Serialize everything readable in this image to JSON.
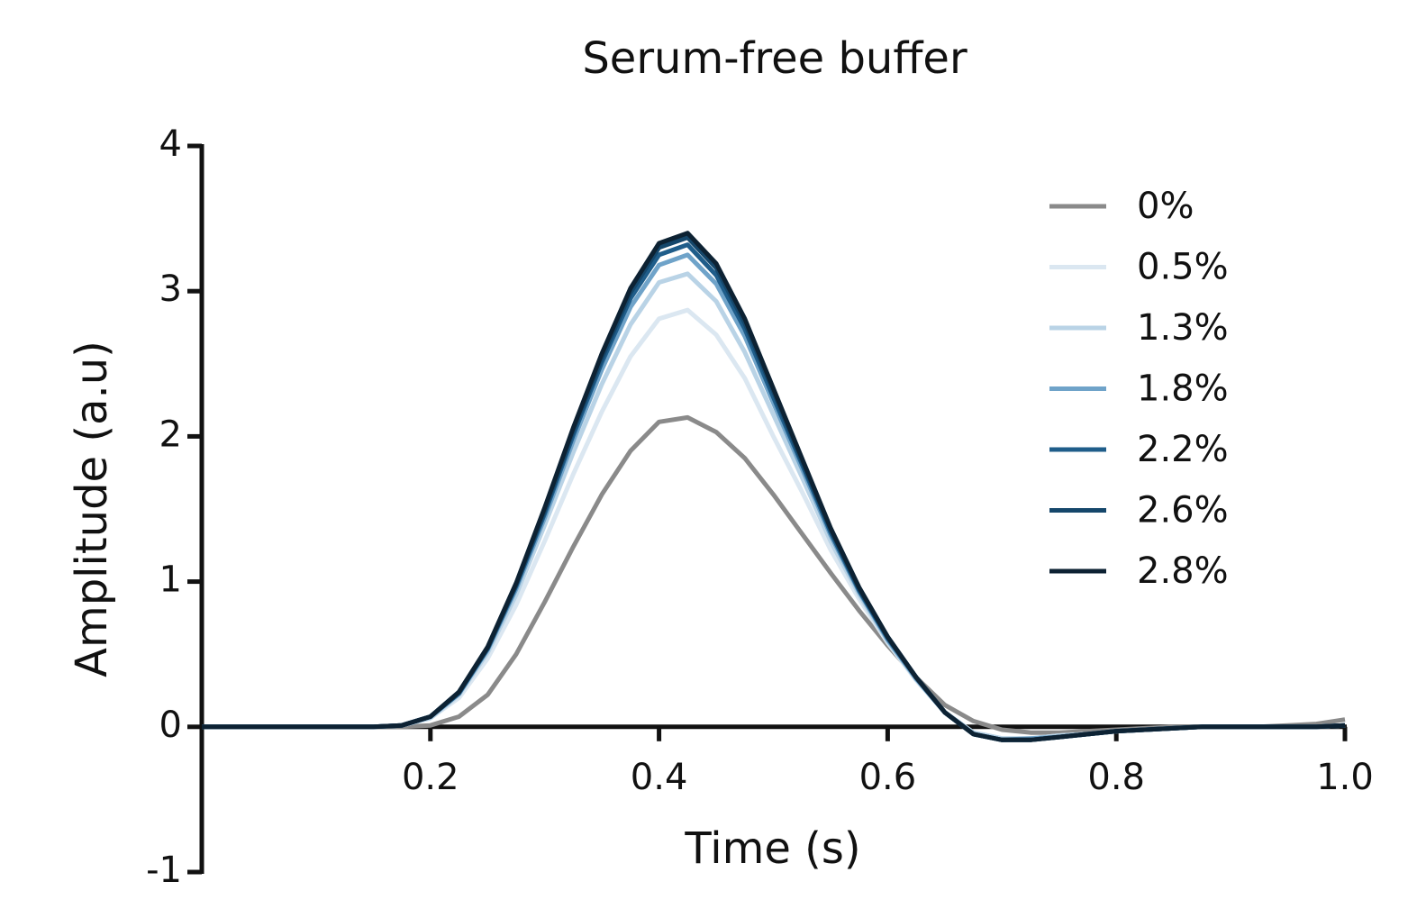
{
  "chart_data": {
    "type": "line",
    "title": "Serum-free buffer",
    "x_label": "Time (s)",
    "y_label": "Amplitude (a.u)",
    "x": [
      0,
      0.025,
      0.05,
      0.075,
      0.1,
      0.125,
      0.15,
      0.175,
      0.2,
      0.225,
      0.25,
      0.275,
      0.3,
      0.325,
      0.35,
      0.375,
      0.4,
      0.425,
      0.45,
      0.475,
      0.5,
      0.525,
      0.55,
      0.575,
      0.6,
      0.625,
      0.65,
      0.675,
      0.7,
      0.725,
      0.75,
      0.775,
      0.8,
      0.825,
      0.85,
      0.875,
      0.9,
      0.925,
      0.95,
      0.975,
      1
    ],
    "series": [
      {
        "name": "0%",
        "color": "#8a8a8a",
        "values": [
          0,
          0,
          0,
          0,
          0,
          0,
          0,
          0,
          0.01,
          0.07,
          0.22,
          0.5,
          0.86,
          1.24,
          1.6,
          1.9,
          2.1,
          2.13,
          2.03,
          1.85,
          1.6,
          1.33,
          1.06,
          0.8,
          0.56,
          0.34,
          0.15,
          0.04,
          -0.02,
          -0.04,
          -0.04,
          -0.03,
          -0.02,
          -0.01,
          0,
          0,
          0,
          0,
          0.01,
          0.02,
          0.05
        ]
      },
      {
        "name": "0.5%",
        "color": "#dbe7f1",
        "values": [
          0,
          0,
          0,
          0,
          0,
          0,
          0,
          0.01,
          0.06,
          0.2,
          0.47,
          0.84,
          1.28,
          1.74,
          2.17,
          2.55,
          2.81,
          2.87,
          2.7,
          2.4,
          2.0,
          1.62,
          1.22,
          0.88,
          0.58,
          0.32,
          0.1,
          -0.04,
          -0.08,
          -0.08,
          -0.06,
          -0.05,
          -0.03,
          -0.02,
          -0.01,
          0,
          0,
          0,
          0,
          0,
          0.01
        ]
      },
      {
        "name": "1.3%",
        "color": "#b9d3e6",
        "values": [
          0,
          0,
          0,
          0,
          0,
          0,
          0,
          0.01,
          0.06,
          0.22,
          0.51,
          0.91,
          1.39,
          1.89,
          2.36,
          2.77,
          3.06,
          3.12,
          2.93,
          2.58,
          2.15,
          1.72,
          1.28,
          0.91,
          0.59,
          0.33,
          0.1,
          -0.04,
          -0.08,
          -0.08,
          -0.06,
          -0.05,
          -0.03,
          -0.02,
          -0.01,
          0,
          0,
          0,
          0,
          0,
          0.01
        ]
      },
      {
        "name": "1.8%",
        "color": "#6fa3c9",
        "values": [
          0,
          0,
          0,
          0,
          0,
          0,
          0,
          0.01,
          0.07,
          0.23,
          0.53,
          0.95,
          1.44,
          1.97,
          2.46,
          2.89,
          3.18,
          3.25,
          3.05,
          2.69,
          2.23,
          1.78,
          1.32,
          0.93,
          0.6,
          0.33,
          0.1,
          -0.05,
          -0.09,
          -0.08,
          -0.07,
          -0.05,
          -0.03,
          -0.02,
          -0.01,
          0,
          0,
          0,
          0,
          0,
          0.01
        ]
      },
      {
        "name": "2.2%",
        "color": "#1f5d8a",
        "values": [
          0,
          0,
          0,
          0,
          0,
          0,
          0,
          0.01,
          0.07,
          0.23,
          0.54,
          0.97,
          1.47,
          2.01,
          2.51,
          2.95,
          3.25,
          3.32,
          3.11,
          2.74,
          2.27,
          1.81,
          1.34,
          0.94,
          0.61,
          0.34,
          0.1,
          -0.05,
          -0.09,
          -0.09,
          -0.07,
          -0.05,
          -0.03,
          -0.02,
          -0.01,
          0,
          0,
          0,
          0,
          0,
          0.01
        ]
      },
      {
        "name": "2.6%",
        "color": "#15476b",
        "values": [
          0,
          0,
          0,
          0,
          0,
          0,
          0,
          0.01,
          0.07,
          0.24,
          0.54,
          0.98,
          1.49,
          2.04,
          2.54,
          2.99,
          3.3,
          3.37,
          3.16,
          2.78,
          2.31,
          1.83,
          1.36,
          0.95,
          0.62,
          0.34,
          0.1,
          -0.05,
          -0.09,
          -0.09,
          -0.07,
          -0.05,
          -0.03,
          -0.02,
          -0.01,
          0,
          0,
          0,
          0,
          0,
          0.01
        ]
      },
      {
        "name": "2.8%",
        "color": "#0d2233",
        "values": [
          0,
          0,
          0,
          0,
          0,
          0,
          0,
          0.01,
          0.07,
          0.24,
          0.55,
          0.99,
          1.51,
          2.06,
          2.57,
          3.02,
          3.33,
          3.4,
          3.19,
          2.81,
          2.33,
          1.85,
          1.37,
          0.96,
          0.62,
          0.34,
          0.1,
          -0.05,
          -0.09,
          -0.09,
          -0.07,
          -0.05,
          -0.03,
          -0.02,
          -0.01,
          0,
          0,
          0,
          0,
          0,
          0.01
        ]
      }
    ],
    "xlim": [
      0,
      1
    ],
    "xticks": [
      0.2,
      0.4,
      0.6,
      0.8,
      {
        "value": 1,
        "label": "1.0"
      }
    ],
    "ylim": [
      -1,
      4
    ],
    "yticks": [
      -1,
      0,
      1,
      2,
      3,
      4
    ],
    "legend": "upper-right",
    "grid": false
  }
}
